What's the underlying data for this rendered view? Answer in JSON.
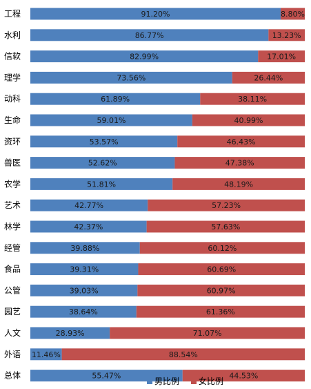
{
  "chart_data": {
    "type": "bar",
    "orientation": "horizontal",
    "stacked": true,
    "percent_stacked": true,
    "categories": [
      "工程",
      "水利",
      "信软",
      "理学",
      "动科",
      "生命",
      "资环",
      "兽医",
      "农学",
      "艺术",
      "林学",
      "经管",
      "食品",
      "公管",
      "园艺",
      "人文",
      "外语",
      "总体"
    ],
    "series": [
      {
        "name": "男比例",
        "color": "#4F81BD",
        "values": [
          91.2,
          86.77,
          82.99,
          73.56,
          61.89,
          59.01,
          53.57,
          52.62,
          51.81,
          42.77,
          42.37,
          39.88,
          39.31,
          39.03,
          38.64,
          28.93,
          11.46,
          55.47
        ],
        "labels": [
          "91.20%",
          "86.77%",
          "82.99%",
          "73.56%",
          "61.89%",
          "59.01%",
          "53.57%",
          "52.62%",
          "51.81%",
          "42.77%",
          "42.37%",
          "39.88%",
          "39.31%",
          "39.03%",
          "38.64%",
          "28.93%",
          "11.46%",
          "55.47%"
        ]
      },
      {
        "name": "女比例",
        "color": "#C0504D",
        "values": [
          8.8,
          13.23,
          17.01,
          26.44,
          38.11,
          40.99,
          46.43,
          47.38,
          48.19,
          57.23,
          57.63,
          60.12,
          60.69,
          60.97,
          61.36,
          71.07,
          88.54,
          44.53
        ],
        "labels": [
          "8.80%",
          "13.23%",
          "17.01%",
          "26.44%",
          "38.11%",
          "40.99%",
          "46.43%",
          "47.38%",
          "48.19%",
          "57.23%",
          "57.63%",
          "60.12%",
          "60.69%",
          "60.97%",
          "61.36%",
          "71.07%",
          "88.54%",
          "44.53%"
        ]
      }
    ],
    "xlim": [
      0,
      100
    ],
    "grid": false,
    "legend_position": "bottom"
  }
}
